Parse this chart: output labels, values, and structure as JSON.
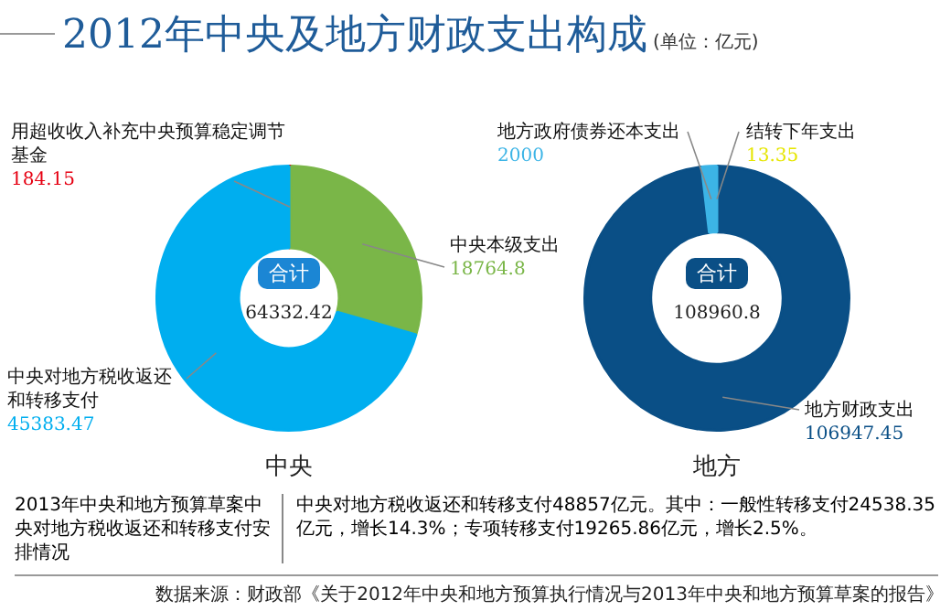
{
  "chart_data": [
    {
      "type": "other",
      "title": "2012年中央及地方财政支出构成",
      "subtitle": "(单位：亿元)",
      "annotations": [
        "2013年中央和地方预算草案中央对地方税收返还和转移支付安排情况",
        "中央对地方税收返还和转移支付48857亿元。其中：一般性转移支付24538.35亿元，增长14.3%；专项转移支付19265.86亿元，增长2.5%。",
        "数据来源：财政部《关于2012年中央和地方预算执行情况与2013年中央和地方预算草案的报告》"
      ]
    },
    {
      "type": "donut",
      "title": "中央",
      "categories": [
        "用超收收入补充中央预算稳定调节基金",
        "中央本级支出",
        "中央对地方税收返还和转移支付"
      ],
      "values": [
        184.15,
        18764.8,
        45383.47
      ],
      "colors": [
        "#e60012",
        "#7ab648",
        "#00aeef"
      ],
      "data_labels": true,
      "annotations": [
        "合计",
        "64332.42"
      ]
    },
    {
      "type": "donut",
      "title": "地方",
      "categories": [
        "结转下年支出",
        "地方财政支出",
        "地方政府债券还本支出"
      ],
      "values": [
        13.35,
        106947.45,
        2000
      ],
      "colors": [
        "#e6e600",
        "#0a4f86",
        "#3cb4e6"
      ],
      "data_labels": true,
      "annotations": [
        "合计",
        "108960.8"
      ]
    }
  ]
}
